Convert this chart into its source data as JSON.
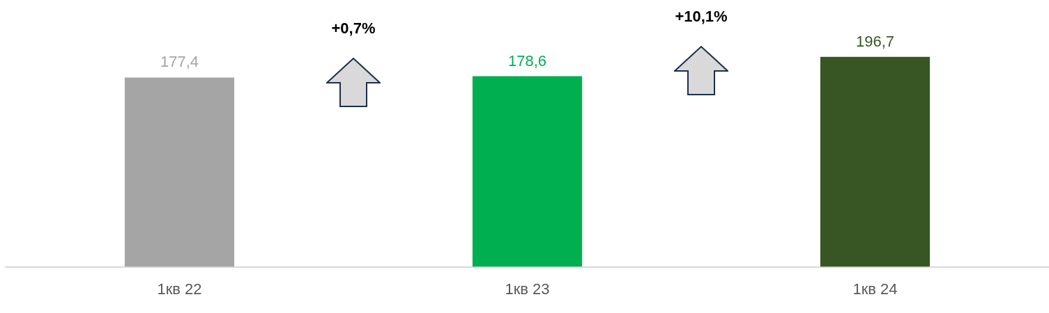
{
  "chart_data": {
    "type": "bar",
    "categories": [
      "1кв 22",
      "1кв 23",
      "1кв 24"
    ],
    "values": [
      177.4,
      178.6,
      196.7
    ],
    "colors": [
      "#a5a5a5",
      "#00b050",
      "#375623"
    ],
    "value_labels": [
      "177,4",
      "178,6",
      "196,7"
    ],
    "tick_labels": "x",
    "grid": false,
    "legend": false,
    "annotations": [
      "+0,7%",
      "+10,1%"
    ]
  }
}
